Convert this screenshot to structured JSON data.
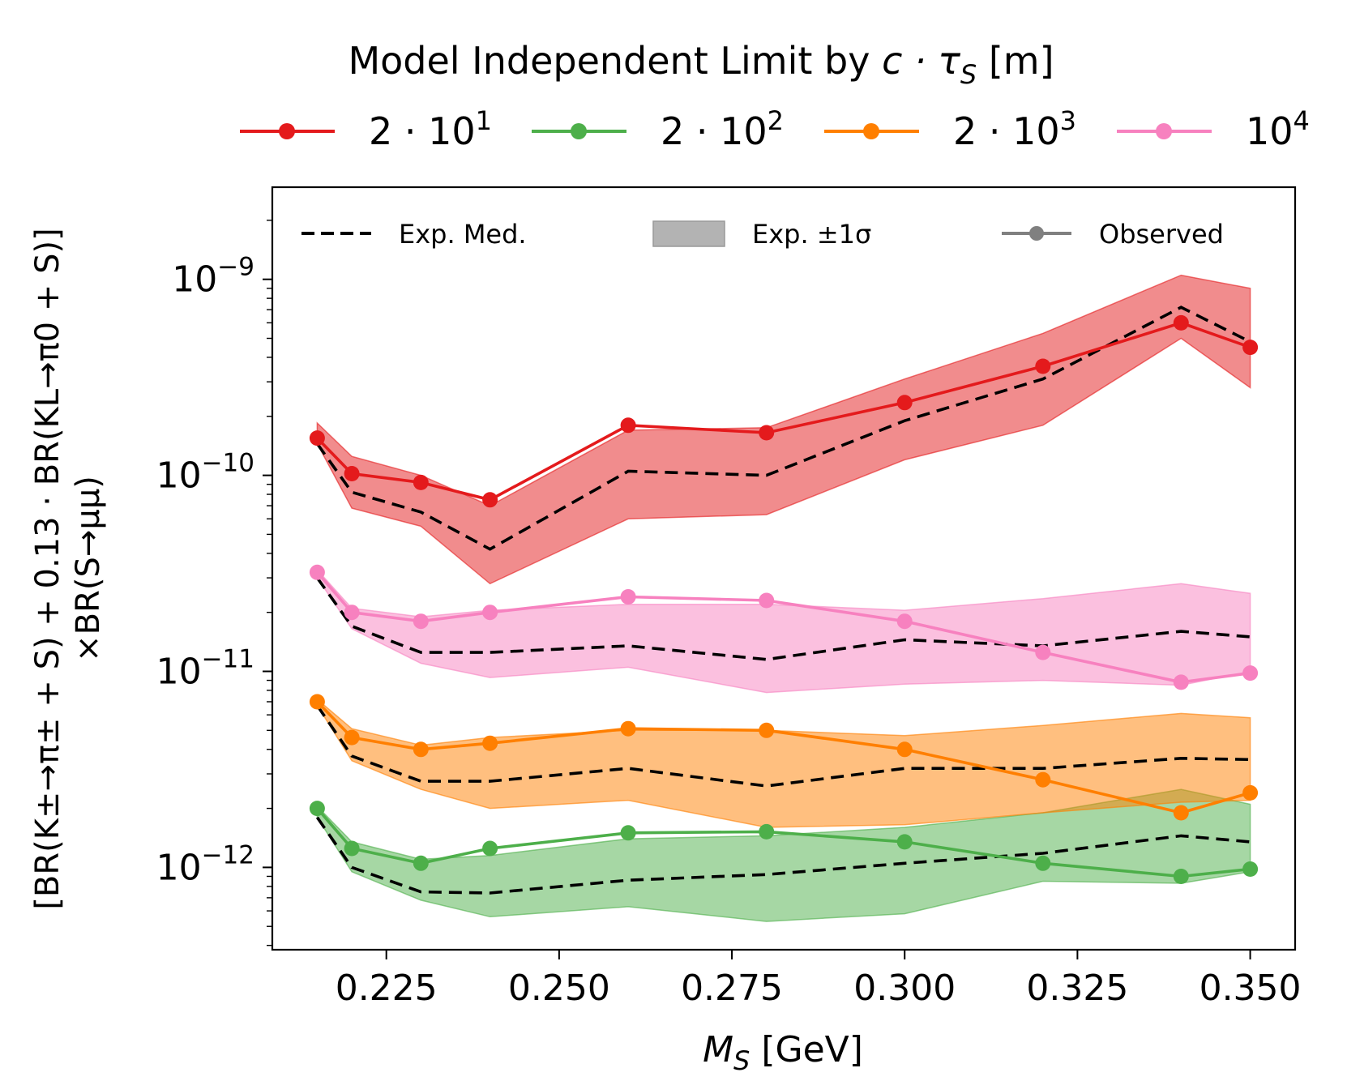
{
  "chart_data": {
    "type": "line",
    "title": "Model Independent Limit by c · τ_S [m]",
    "title_parts": {
      "pre": "Model Independent Limit by ",
      "math": "c · τ",
      "sub": "S",
      "post": " [m]"
    },
    "xlabel": "M_S [GeV]",
    "xlabel_parts": {
      "math": "M",
      "sub": "S",
      "post": " [GeV]"
    },
    "ylabel": "[BR(K± → π± + S) + 0.13 · BR(K^L → π^0 + S)] × BR(S → μμ)",
    "ylabel_lines": {
      "line1": "[BR(K±→π± + S) + 0.13 · BR(KL→π0 + S)]",
      "line2": "×BR(S→μμ)"
    },
    "xlim": [
      0.2085,
      0.3565
    ],
    "ylim_log10": [
      -12.42,
      -8.53
    ],
    "y_scale": "log",
    "xticks": [
      0.225,
      0.25,
      0.275,
      0.3,
      0.325,
      0.35
    ],
    "xtick_labels": [
      "0.225",
      "0.250",
      "0.275",
      "0.300",
      "0.325",
      "0.350"
    ],
    "ytick_exponents": [
      -12,
      -11,
      -10,
      -9
    ],
    "ytick_labels": {
      "base": "10",
      "exps": [
        "−12",
        "−11",
        "−10",
        "−9"
      ]
    },
    "inner_legend": {
      "expected_median": "Exp. Med.",
      "expected_band": "Exp. ±1σ",
      "observed": "Observed"
    },
    "x": [
      0.215,
      0.22,
      0.23,
      0.24,
      0.26,
      0.28,
      0.3,
      0.32,
      0.34,
      0.35
    ],
    "series": [
      {
        "name": "2 · 10^1",
        "label_parts": {
          "base": "2 · 10",
          "sup": "1"
        },
        "color": "#e41a1c",
        "band_color": "#e41a1c",
        "observed": [
          1.55e-10,
          1.02e-10,
          9.2e-11,
          7.5e-11,
          1.8e-10,
          1.65e-10,
          2.35e-10,
          3.6e-10,
          6e-10,
          4.5e-10
        ],
        "expected": [
          1.45e-10,
          8.2e-11,
          6.5e-11,
          4.2e-11,
          1.05e-10,
          1e-10,
          1.9e-10,
          3.1e-10,
          7.2e-10,
          4.8e-10
        ],
        "band_low": [
          1.45e-10,
          6.8e-11,
          5.5e-11,
          2.8e-11,
          6e-11,
          6.3e-11,
          1.2e-10,
          1.8e-10,
          5e-10,
          2.8e-10
        ],
        "band_high": [
          1.85e-10,
          1.25e-10,
          1e-10,
          7e-11,
          1.7e-10,
          1.75e-10,
          3.1e-10,
          5.3e-10,
          1.05e-09,
          9e-10
        ]
      },
      {
        "name": "2 · 10^2",
        "label_parts": {
          "base": "2 · 10",
          "sup": "2"
        },
        "color": "#4daf4a",
        "band_color": "#4daf4a",
        "observed": [
          2e-12,
          1.25e-12,
          1.05e-12,
          1.25e-12,
          1.5e-12,
          1.52e-12,
          1.35e-12,
          1.05e-12,
          9e-13,
          9.8e-13
        ],
        "expected": [
          1.8e-12,
          1e-12,
          7.5e-13,
          7.4e-13,
          8.6e-13,
          9.2e-13,
          1.05e-12,
          1.18e-12,
          1.45e-12,
          1.35e-12
        ],
        "band_low": [
          1.8e-12,
          9.5e-13,
          6.8e-13,
          5.6e-13,
          6.3e-13,
          5.3e-13,
          5.8e-13,
          8.5e-13,
          8.3e-13,
          9.5e-13
        ],
        "band_high": [
          2.05e-12,
          1.35e-12,
          1.1e-12,
          1.15e-12,
          1.4e-12,
          1.45e-12,
          1.6e-12,
          1.9e-12,
          2.5e-12,
          2.1e-12
        ]
      },
      {
        "name": "2 · 10^3",
        "label_parts": {
          "base": "2 · 10",
          "sup": "3"
        },
        "color": "#ff7f00",
        "band_color": "#ff7f00",
        "observed": [
          7e-12,
          4.6e-12,
          4e-12,
          4.3e-12,
          5.1e-12,
          5e-12,
          4e-12,
          2.8e-12,
          1.9e-12,
          2.4e-12
        ],
        "expected": [
          6.7e-12,
          3.7e-12,
          2.75e-12,
          2.75e-12,
          3.2e-12,
          2.6e-12,
          3.2e-12,
          3.2e-12,
          3.6e-12,
          3.55e-12
        ],
        "band_low": [
          6.7e-12,
          3.5e-12,
          2.5e-12,
          2e-12,
          2.2e-12,
          1.6e-12,
          1.65e-12,
          1.9e-12,
          2.15e-12,
          2.2e-12
        ],
        "band_high": [
          7.2e-12,
          5.1e-12,
          4.2e-12,
          4.6e-12,
          5e-12,
          5e-12,
          4.7e-12,
          5.3e-12,
          6.1e-12,
          5.8e-12
        ]
      },
      {
        "name": "10^4",
        "label_parts": {
          "base": "10",
          "sup": "4"
        },
        "color": "#f781bf",
        "band_color": "#f781bf",
        "observed": [
          3.2e-11,
          2e-11,
          1.8e-11,
          2e-11,
          2.4e-11,
          2.3e-11,
          1.8e-11,
          1.25e-11,
          8.8e-12,
          9.8e-12
        ],
        "expected": [
          3e-11,
          1.7e-11,
          1.25e-11,
          1.25e-11,
          1.35e-11,
          1.15e-11,
          1.45e-11,
          1.35e-11,
          1.6e-11,
          1.5e-11
        ],
        "band_low": [
          3e-11,
          1.65e-11,
          1.1e-11,
          9.3e-12,
          1.05e-11,
          7.8e-12,
          8.6e-12,
          9e-12,
          8.5e-12,
          1e-11
        ],
        "band_high": [
          3.3e-11,
          2.1e-11,
          1.9e-11,
          2.05e-11,
          2.2e-11,
          2.2e-11,
          2.05e-11,
          2.35e-11,
          2.8e-11,
          2.5e-11
        ]
      }
    ]
  }
}
